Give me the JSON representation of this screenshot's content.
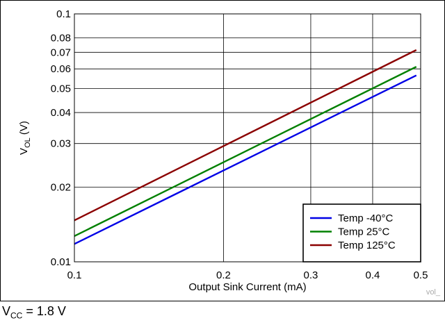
{
  "chart_data": {
    "type": "line",
    "x_scale": "log",
    "y_scale": "log",
    "xlabel": "Output Sink Current (mA)",
    "ylabel_main": "V",
    "ylabel_sub": "OL",
    "ylabel_unit": " (V)",
    "xlim": [
      0.1,
      0.5
    ],
    "ylim": [
      0.01,
      0.1
    ],
    "x_ticks": [
      0.1,
      0.2,
      0.3,
      0.4,
      0.5
    ],
    "x_tick_labels": [
      "0.1",
      "0.2",
      "0.3",
      "0.4",
      "0.5"
    ],
    "y_ticks": [
      0.01,
      0.02,
      0.03,
      0.04,
      0.05,
      0.06,
      0.07,
      0.08,
      0.1
    ],
    "y_tick_labels": [
      "0.01",
      "0.02",
      "0.03",
      "0.04",
      "0.05",
      "0.06",
      "0.07",
      "0.08",
      "0.1"
    ],
    "grid": true,
    "legend_position": "bottom-right",
    "series": [
      {
        "name": "Temp -40°C",
        "color": "#0000e6",
        "x": [
          0.1,
          0.49
        ],
        "y": [
          0.0118,
          0.0565
        ]
      },
      {
        "name": "Temp 25°C",
        "color": "#008000",
        "x": [
          0.1,
          0.49
        ],
        "y": [
          0.0127,
          0.0612
        ]
      },
      {
        "name": "Temp 125°C",
        "color": "#8b0000",
        "x": [
          0.1,
          0.49
        ],
        "y": [
          0.0147,
          0.0715
        ]
      }
    ],
    "watermark": "vol_"
  },
  "footnote": {
    "main": "V",
    "sub": "CC",
    "rest": " = 1.8 V"
  }
}
